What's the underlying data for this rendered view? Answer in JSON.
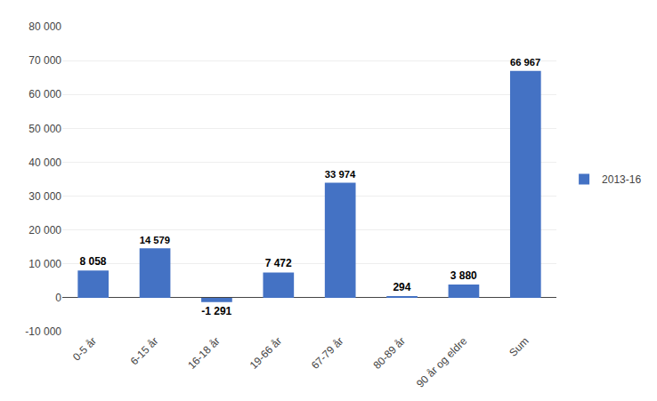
{
  "chart_data": {
    "type": "bar",
    "categories": [
      "0-5 år",
      "6-15 år",
      "16-18 år",
      "19-66 år",
      "67-79 år",
      "80-89 år",
      "90 år og eldre",
      "Sum"
    ],
    "series": [
      {
        "name": "2013-16",
        "color": "#4472C4",
        "values": [
          8058,
          14579,
          -1291,
          7472,
          33974,
          294,
          3880,
          66967
        ],
        "value_labels": [
          "8 058",
          "14 579",
          "-1 291",
          "7 472",
          "33 974",
          "294",
          "3 880",
          "66 967"
        ]
      }
    ],
    "ylim": [
      -10000,
      80000
    ],
    "yticks": [
      {
        "value": -10000,
        "label": "-10 000"
      },
      0,
      {
        "value": 10000,
        "label": "10 000"
      },
      {
        "value": 20000,
        "label": "20 000"
      },
      {
        "value": 30000,
        "label": "30 000"
      },
      {
        "value": 40000,
        "label": "40 000"
      },
      {
        "value": 50000,
        "label": "50 000"
      },
      {
        "value": 60000,
        "label": "60 000"
      },
      {
        "value": 70000,
        "label": "70 000"
      },
      {
        "value": 80000,
        "label": "80 000"
      }
    ],
    "grid": true,
    "legend": "right",
    "data_labels": true
  }
}
